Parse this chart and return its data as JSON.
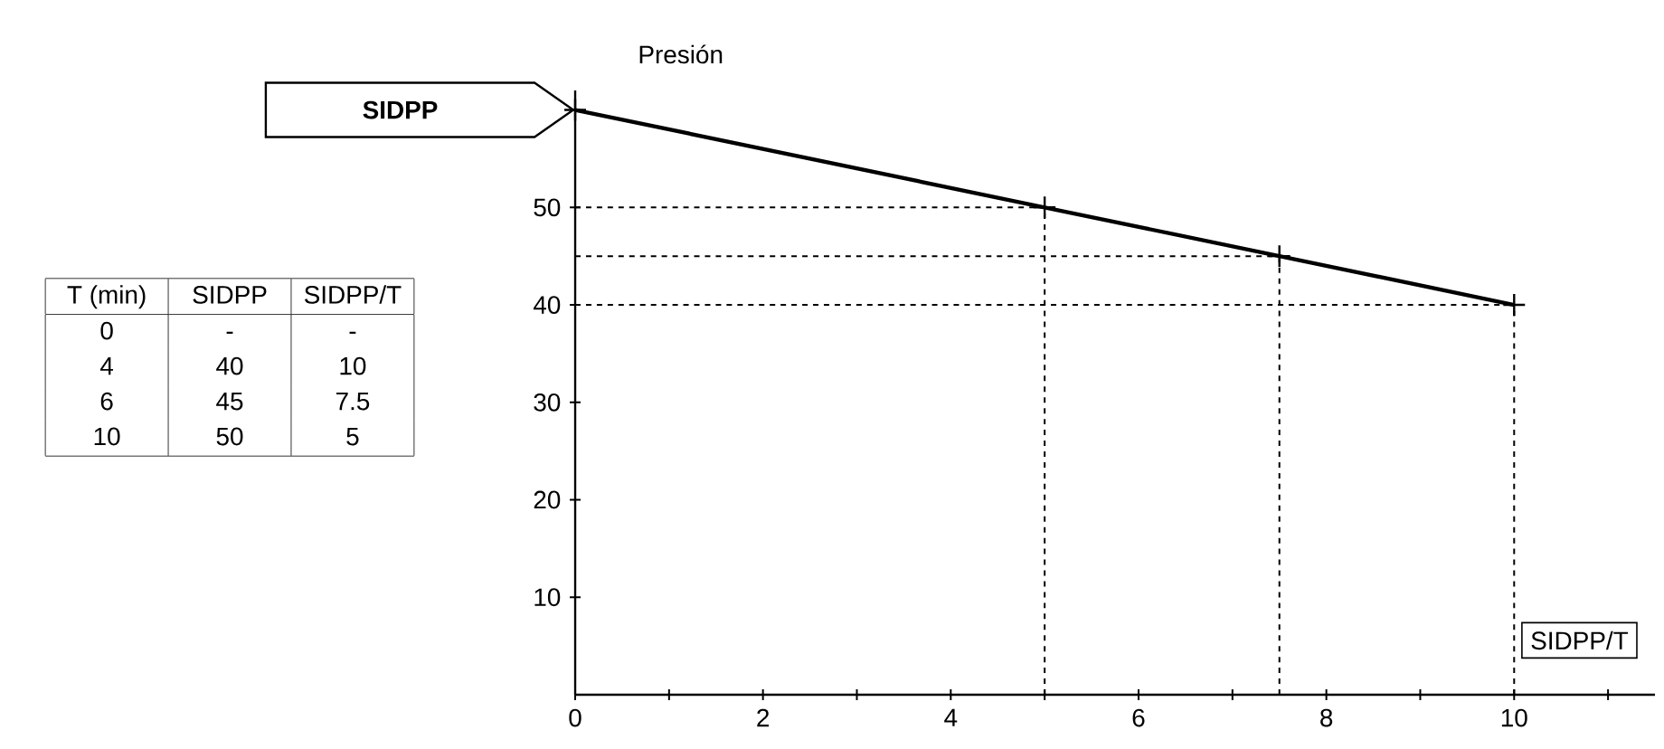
{
  "chart_data": {
    "type": "line",
    "xlabel": "SIDPP/T",
    "ylabel": "Presión",
    "x": [
      0,
      5,
      7.5,
      10
    ],
    "series": [
      {
        "color": "#000000",
        "values": [
          60,
          50,
          45,
          40
        ]
      }
    ],
    "xlim": [
      0,
      11.5
    ],
    "ylim": [
      0,
      62
    ],
    "xticks": [
      0,
      {
        "value": 1,
        "label": null
      },
      2,
      {
        "value": 3,
        "label": null
      },
      4,
      {
        "value": 5,
        "label": null
      },
      6,
      {
        "value": 7,
        "label": null
      },
      8,
      {
        "value": 9,
        "label": null
      },
      10,
      {
        "value": 11,
        "label": null
      }
    ],
    "yticks": [
      10,
      20,
      30,
      40,
      50
    ],
    "marker": "cross",
    "line_style": "solid",
    "grid": false,
    "ref_lines": [
      {
        "axis": "y",
        "value": 50,
        "line_style": "dashed"
      },
      {
        "axis": "y",
        "value": 45,
        "line_style": "dashed"
      },
      {
        "axis": "y",
        "value": 40,
        "line_style": "dashed"
      },
      {
        "axis": "x",
        "value": 5,
        "line_style": "dashed"
      },
      {
        "axis": "x",
        "value": 7.5,
        "line_style": "dashed"
      },
      {
        "axis": "x",
        "value": 10,
        "line_style": "dashed"
      }
    ],
    "annotations": [
      "SIDPP",
      "T (min)",
      "SIDPP",
      "SIDPP/T",
      "0",
      "-",
      "-",
      "4",
      "40",
      "10",
      "6",
      "45",
      "7.5",
      "10",
      "50",
      "5"
    ]
  }
}
